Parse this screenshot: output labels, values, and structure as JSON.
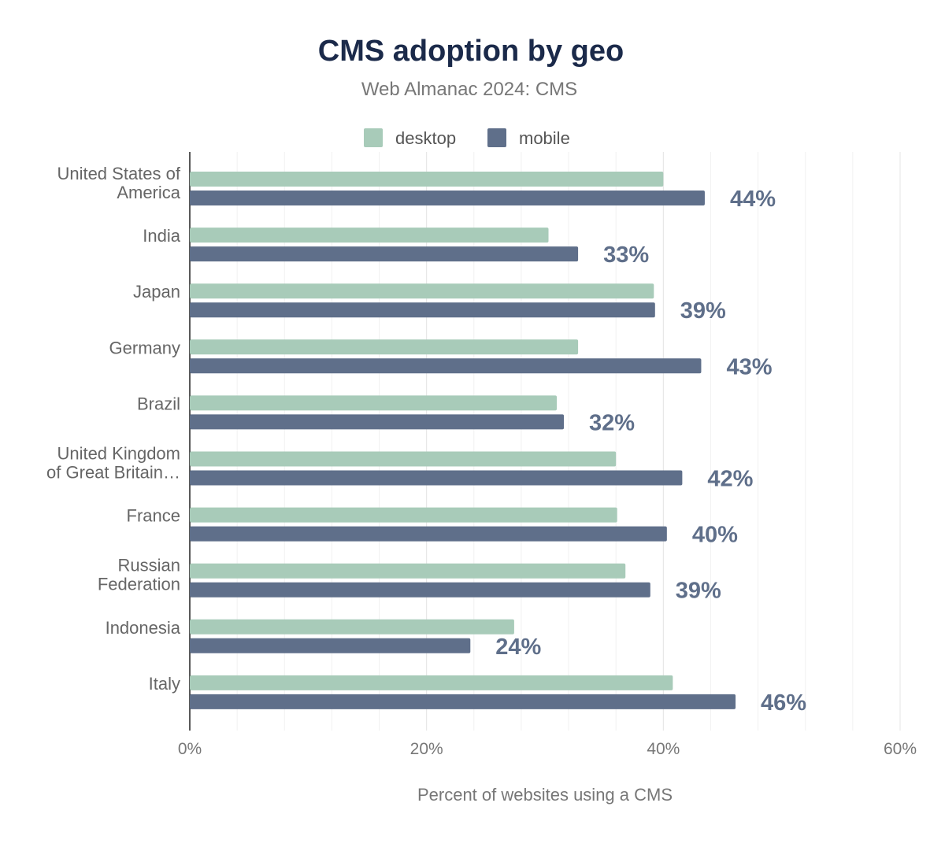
{
  "chart_data": {
    "type": "bar",
    "orientation": "horizontal",
    "title": "CMS adoption by geo",
    "subtitle": "Web Almanac 2024: CMS",
    "xlabel": "Percent of websites using a CMS",
    "ylabel": "",
    "xlim": [
      0,
      60
    ],
    "x_ticks": [
      "0%",
      "20%",
      "40%",
      "60%"
    ],
    "grid": true,
    "legend_position": "top",
    "categories": [
      [
        "United States of",
        "America"
      ],
      [
        "India"
      ],
      [
        "Japan"
      ],
      [
        "Germany"
      ],
      [
        "Brazil"
      ],
      [
        "United Kingdom",
        "of Great Britain…"
      ],
      [
        "France"
      ],
      [
        "Russian",
        "Federation"
      ],
      [
        "Indonesia"
      ],
      [
        "Italy"
      ]
    ],
    "series": [
      {
        "name": "desktop",
        "color": "#a8cbb9",
        "values": [
          40.0,
          30.3,
          39.2,
          32.8,
          31.0,
          36.0,
          36.1,
          36.8,
          27.4,
          40.8
        ]
      },
      {
        "name": "mobile",
        "color": "#5f6f8a",
        "values": [
          43.5,
          32.8,
          39.3,
          43.2,
          31.6,
          41.6,
          40.3,
          38.9,
          23.7,
          46.1
        ]
      }
    ],
    "data_labels": [
      "44%",
      "33%",
      "39%",
      "43%",
      "32%",
      "42%",
      "40%",
      "39%",
      "24%",
      "46%"
    ]
  }
}
